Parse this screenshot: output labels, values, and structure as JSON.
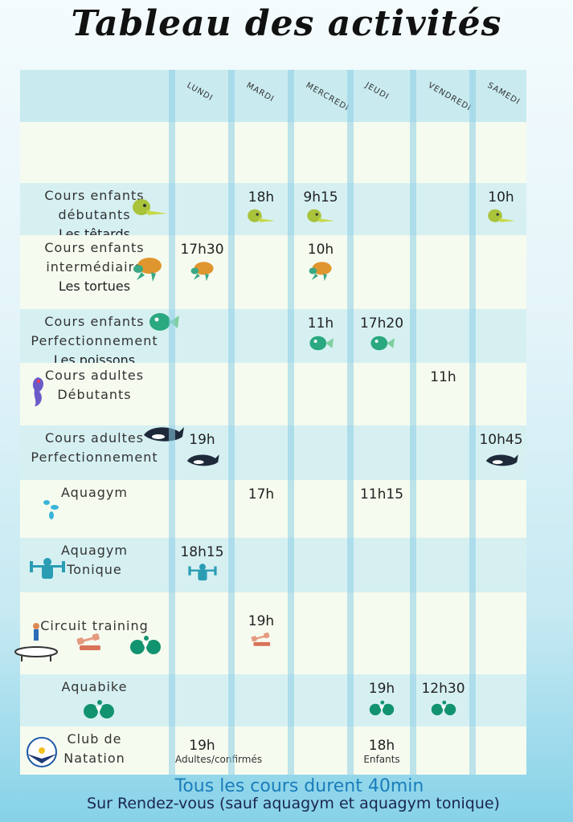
{
  "title": "Tableau des activités",
  "days": [
    "LUNDI",
    "MARDI",
    "MERCREDI",
    "JEUDI",
    "VENDREDI",
    "SAMEDI"
  ],
  "rows": [
    {
      "lines": [
        "Cours enfants",
        "débutants"
      ],
      "sub": "Les têtards",
      "icon": "lizard-icon",
      "cells": [
        null,
        {
          "time": "18h",
          "icon": "lizard-icon"
        },
        {
          "time": "9h15",
          "icon": "lizard-icon"
        },
        null,
        null,
        {
          "time": "10h",
          "icon": "lizard-icon"
        }
      ]
    },
    {
      "lines": [
        "Cours enfants",
        "intermédiaire"
      ],
      "sub": "Les tortues",
      "icon": "turtle-icon",
      "cells": [
        {
          "time": "17h30",
          "icon": "turtle-icon"
        },
        null,
        {
          "time": "10h",
          "icon": "turtle-icon"
        },
        null,
        null,
        null
      ]
    },
    {
      "lines": [
        "Cours enfants",
        "Perfectionnement"
      ],
      "sub": "Les poissons",
      "icon": "fish-icon",
      "cells": [
        null,
        null,
        {
          "time": "11h",
          "icon": "fish-icon"
        },
        {
          "time": "17h20",
          "icon": "fish-icon"
        },
        null,
        null
      ]
    },
    {
      "lines": [
        "Cours adultes",
        "Débutants"
      ],
      "sub": "",
      "icon": "seahorse-icon",
      "cells": [
        null,
        null,
        null,
        null,
        {
          "time": "11h"
        },
        null
      ]
    },
    {
      "lines": [
        "Cours adultes",
        "Perfectionnement"
      ],
      "sub": "",
      "icon": "orca-icon",
      "cells": [
        {
          "time": "19h",
          "icon": "orca-icon"
        },
        null,
        null,
        null,
        null,
        {
          "time": "10h45",
          "icon": "orca-icon"
        }
      ]
    },
    {
      "lines": [
        "Aquagym"
      ],
      "sub": "",
      "icon": "water-drops-icon",
      "cells": [
        null,
        {
          "time": "17h"
        },
        null,
        {
          "time": "11h15"
        },
        null,
        null
      ]
    },
    {
      "lines": [
        "Aquagym",
        "Tonique"
      ],
      "sub": "",
      "icon": "weightlifter-icon",
      "cells": [
        {
          "time": "18h15",
          "icon": "weightlifter-icon"
        },
        null,
        null,
        null,
        null,
        null
      ]
    },
    {
      "lines": [
        "Circuit training"
      ],
      "sub": "",
      "icon": "dumbbell-icon",
      "cells": [
        null,
        {
          "time": "19h",
          "icon": "dumbbell-icon"
        },
        null,
        null,
        null,
        null
      ]
    },
    {
      "lines": [
        "Aquabike"
      ],
      "sub": "",
      "icon": "bike-icon",
      "cells": [
        null,
        null,
        null,
        {
          "time": "19h",
          "icon": "bike-icon"
        },
        {
          "time": "12h30",
          "icon": "bike-icon"
        },
        null
      ]
    },
    {
      "lines": [
        "Club de",
        "Natation"
      ],
      "sub": "",
      "icon": "swim-club-logo",
      "cells": [
        {
          "time": "19h",
          "note": "Adultes/confirmés"
        },
        null,
        null,
        {
          "time": "18h",
          "note": "Enfants"
        },
        null,
        null
      ]
    }
  ],
  "footer": {
    "duration": "Tous les cours durent 40min",
    "appointment": "Sur Rendez-vous (sauf aquagym et aquagym tonique)"
  },
  "colors": {
    "header": "#c9ebf0",
    "row_blue": "#d6f0f2",
    "row_cream": "#f6fbef",
    "footer_blue": "#1a7dbb",
    "footer_dark": "#1a2550"
  }
}
